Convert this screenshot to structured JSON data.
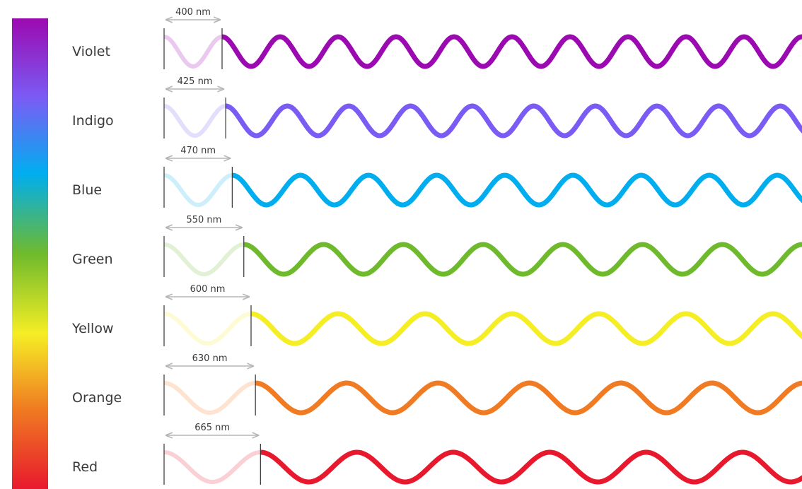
{
  "spectrum": {
    "stops": [
      "#9b0ab0",
      "#7a5cf5",
      "#00aeef",
      "#6fba2c",
      "#f5ee25",
      "#f07b22",
      "#e8192d"
    ]
  },
  "colors": [
    {
      "label": "Violet",
      "wavelength_label": "400 nm",
      "wavelength_nm": 400,
      "color": "#9b0ab0",
      "light": "#ebc9ef"
    },
    {
      "label": "Indigo",
      "wavelength_label": "425 nm",
      "wavelength_nm": 425,
      "color": "#7a5cf5",
      "light": "#e4defd"
    },
    {
      "label": "Blue",
      "wavelength_label": "470 nm",
      "wavelength_nm": 470,
      "color": "#00aeef",
      "light": "#cdeefb"
    },
    {
      "label": "Green",
      "wavelength_label": "550 nm",
      "wavelength_nm": 550,
      "color": "#6fba2c",
      "light": "#e2f1d5"
    },
    {
      "label": "Yellow",
      "wavelength_label": "600 nm",
      "wavelength_nm": 600,
      "color": "#f5ee25",
      "light": "#fdfbd3"
    },
    {
      "label": "Orange",
      "wavelength_label": "630 nm",
      "wavelength_nm": 630,
      "color": "#f07b22",
      "light": "#fde3d0"
    },
    {
      "label": "Red",
      "wavelength_label": "665 nm",
      "wavelength_nm": 665,
      "color": "#e8192d",
      "light": "#fad0d5"
    }
  ]
}
